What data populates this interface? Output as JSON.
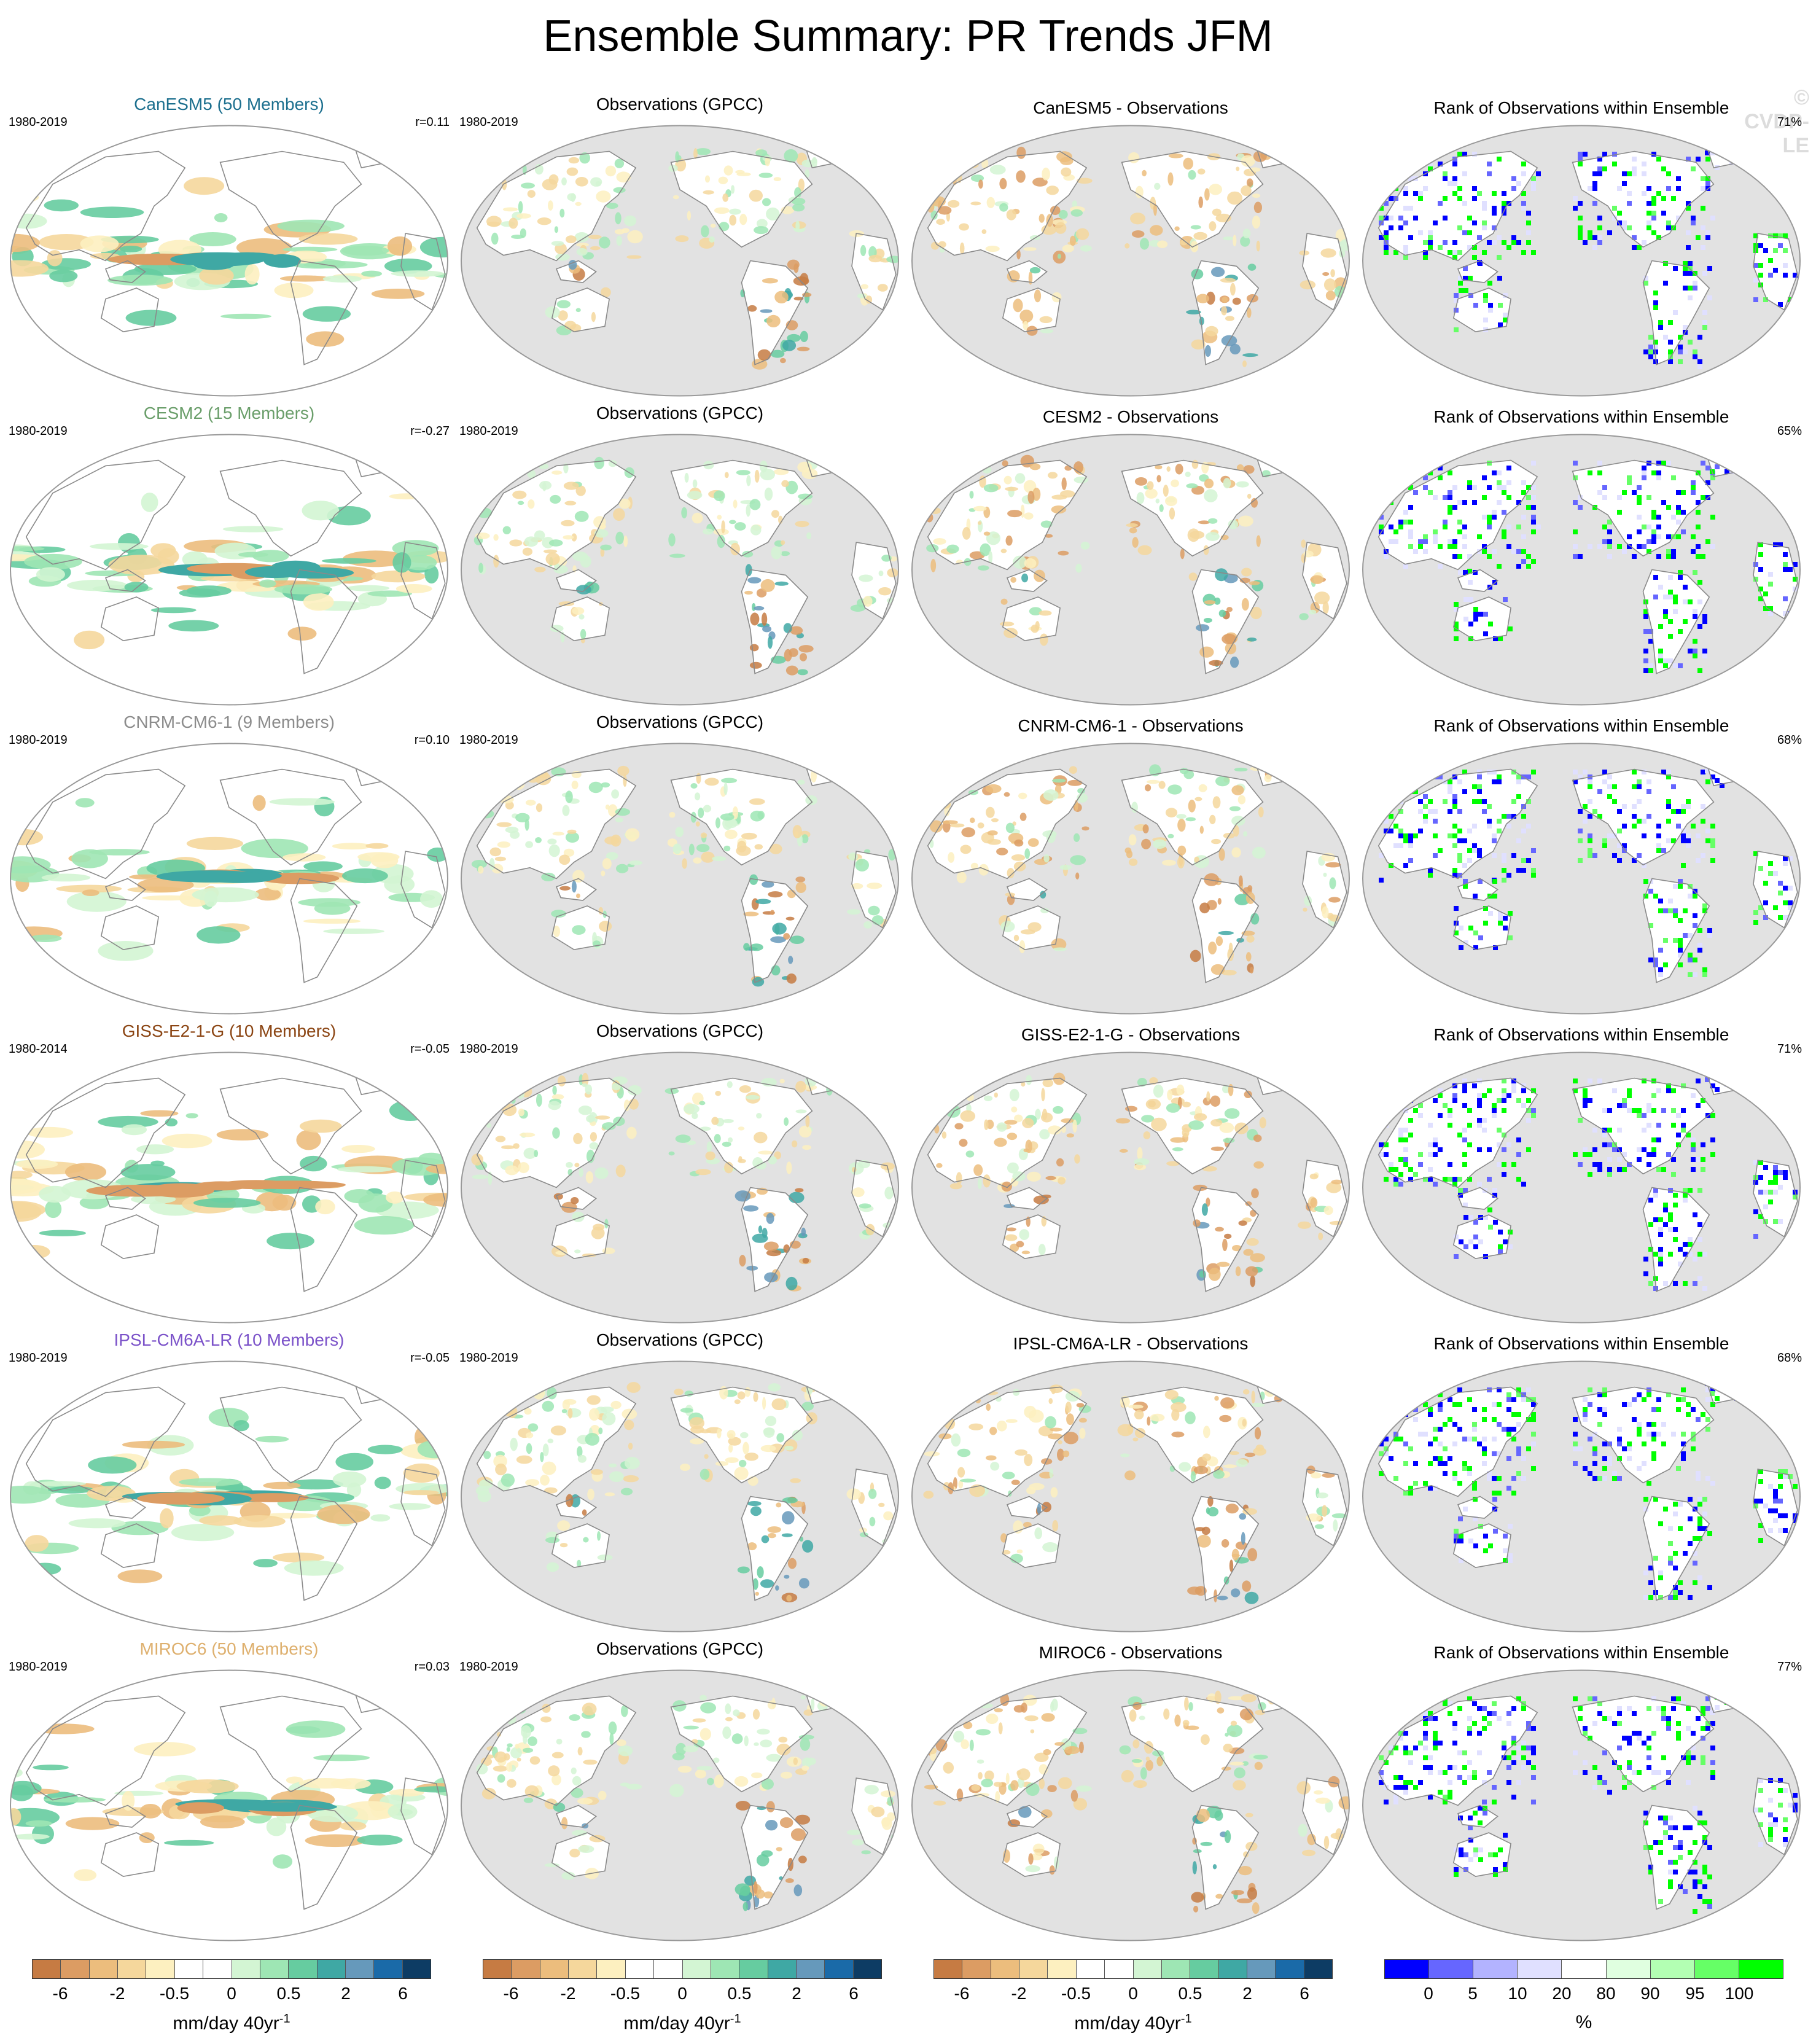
{
  "title": "Ensemble Summary: PR Trends JFM",
  "watermark": "© CVDP-LE",
  "colors": {
    "ocean_mask": "#e2e2e2",
    "coastline": "#8a8a8a",
    "trend_scale": [
      "#a4582a",
      "#c67b43",
      "#dc9c63",
      "#ecbd7d",
      "#f5d79c",
      "#fdf0c0",
      "#ffffff",
      "#ffffff",
      "#d3f5d3",
      "#9ee6b4",
      "#66cca0",
      "#3fa8a4",
      "#6699bb",
      "#1a6aa8",
      "#0d3c64"
    ],
    "rank_scale": [
      "#0000ff",
      "#6666ff",
      "#b3b3ff",
      "#e0e0ff",
      "#ffffff",
      "#e0ffe0",
      "#b3ffb3",
      "#66ff66",
      "#00ff00"
    ]
  },
  "rows": [
    {
      "model_title": "CanESM5 (50 Members)",
      "model_color": "#1c6f8e",
      "model_period": "1980-2019",
      "corr": "r=0.11",
      "obs_title": "Observations (GPCC)",
      "obs_period": "1980-2019",
      "diff_title": "CanESM5 - Observations",
      "rank_title": "Rank of Observations within Ensemble",
      "rank_pct": "71%"
    },
    {
      "model_title": "CESM2 (15 Members)",
      "model_color": "#6a9e6a",
      "model_period": "1980-2019",
      "corr": "r=-0.27",
      "obs_title": "Observations (GPCC)",
      "obs_period": "1980-2019",
      "diff_title": "CESM2 - Observations",
      "rank_title": "Rank of Observations within Ensemble",
      "rank_pct": "65%"
    },
    {
      "model_title": "CNRM-CM6-1 (9 Members)",
      "model_color": "#8c8c8c",
      "model_period": "1980-2019",
      "corr": "r=0.10",
      "obs_title": "Observations (GPCC)",
      "obs_period": "1980-2019",
      "diff_title": "CNRM-CM6-1 - Observations",
      "rank_title": "Rank of Observations within Ensemble",
      "rank_pct": "68%"
    },
    {
      "model_title": "GISS-E2-1-G (10 Members)",
      "model_color": "#8b4513",
      "model_period": "1980-2014",
      "corr": "r=-0.05",
      "obs_title": "Observations (GPCC)",
      "obs_period": "1980-2019",
      "diff_title": "GISS-E2-1-G - Observations",
      "rank_title": "Rank of Observations within Ensemble",
      "rank_pct": "71%"
    },
    {
      "model_title": "IPSL-CM6A-LR (10 Members)",
      "model_color": "#7b52c9",
      "model_period": "1980-2019",
      "corr": "r=-0.05",
      "obs_title": "Observations (GPCC)",
      "obs_period": "1980-2019",
      "diff_title": "IPSL-CM6A-LR - Observations",
      "rank_title": "Rank of Observations within Ensemble",
      "rank_pct": "68%"
    },
    {
      "model_title": "MIROC6 (50 Members)",
      "model_color": "#deb06e",
      "model_period": "1980-2019",
      "corr": "r=0.03",
      "obs_title": "Observations (GPCC)",
      "obs_period": "1980-2019",
      "diff_title": "MIROC6 - Observations",
      "rank_title": "Rank of Observations within Ensemble",
      "rank_pct": "77%"
    }
  ],
  "colorbars": [
    {
      "ticks": [
        "-6",
        "-2",
        "-0.5",
        "0",
        "0.5",
        "2",
        "6"
      ],
      "units": "mm/day 40yr",
      "units_sup": "-1"
    },
    {
      "ticks": [
        "-6",
        "-2",
        "-0.5",
        "0",
        "0.5",
        "2",
        "6"
      ],
      "units": "mm/day 40yr",
      "units_sup": "-1"
    },
    {
      "ticks": [
        "-6",
        "-2",
        "-0.5",
        "0",
        "0.5",
        "2",
        "6"
      ],
      "units": "mm/day 40yr",
      "units_sup": "-1"
    },
    {
      "ticks": [
        "0",
        "5",
        "10",
        "20",
        "80",
        "90",
        "95",
        "100"
      ],
      "units": "%",
      "units_sup": ""
    }
  ]
}
